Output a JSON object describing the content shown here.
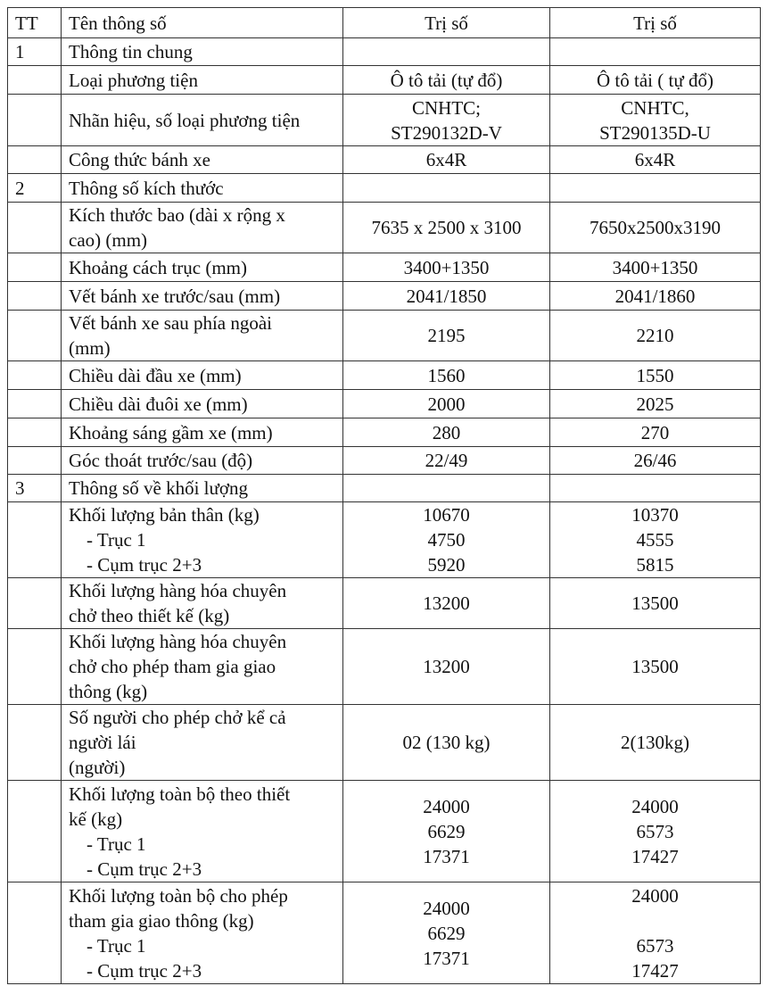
{
  "header": {
    "tt": "TT",
    "name": "Tên thông số",
    "value1": "Trị số",
    "value2": "Trị số"
  },
  "rows": [
    {
      "h": 31,
      "tt": "1",
      "name": [
        "Thông tin chung"
      ],
      "v1": [],
      "v2": []
    },
    {
      "h": 32,
      "tt": "",
      "name": [
        "Loại phương tiện"
      ],
      "v1": [
        "Ô tô tải (tự đổ)"
      ],
      "v2": [
        "Ô tô tải ( tự đổ)"
      ]
    },
    {
      "h": 58,
      "tt": "",
      "name": [
        "Nhãn hiệu, số loại phương tiện"
      ],
      "v1": [
        "CNHTC;",
        "ST290132D-V"
      ],
      "v2": [
        "CNHTC,",
        "ST290135D-U"
      ]
    },
    {
      "h": 31,
      "tt": "",
      "name": [
        "Công thức bánh xe"
      ],
      "v1": [
        "6x4R"
      ],
      "v2": [
        "6x4R"
      ]
    },
    {
      "h": 32,
      "tt": "2",
      "name": [
        "Thông số kích thước"
      ],
      "v1": [],
      "v2": []
    },
    {
      "h": 55,
      "tt": "",
      "name": [
        "Kích thước bao (dài x rộng x",
        "cao) (mm)"
      ],
      "v1": [
        "7635 x 2500 x 3100"
      ],
      "v2": [
        "7650x2500x3190"
      ]
    },
    {
      "h": 32,
      "tt": "",
      "name": [
        "Khoảng cách trục (mm)"
      ],
      "v1": [
        "3400+1350"
      ],
      "v2": [
        "3400+1350"
      ]
    },
    {
      "h": 32,
      "tt": "",
      "name": [
        "Vết bánh xe trước/sau (mm)"
      ],
      "v1": [
        "2041/1850"
      ],
      "v2": [
        "2041/1860"
      ]
    },
    {
      "h": 57,
      "tt": "",
      "name": [
        "Vết bánh xe sau phía ngoài",
        "(mm)"
      ],
      "v1": [
        "2195"
      ],
      "v2": [
        "2210"
      ]
    },
    {
      "h": 32,
      "tt": "",
      "name": [
        "Chiều dài đầu xe (mm)"
      ],
      "v1": [
        "1560"
      ],
      "v2": [
        "1550"
      ]
    },
    {
      "h": 32,
      "tt": "",
      "name": [
        "Chiều dài đuôi xe (mm)"
      ],
      "v1": [
        "2000"
      ],
      "v2": [
        "2025"
      ]
    },
    {
      "h": 32,
      "tt": "",
      "name": [
        "Khoảng sáng gầm xe (mm)"
      ],
      "v1": [
        "280"
      ],
      "v2": [
        "270"
      ]
    },
    {
      "h": 31,
      "tt": "",
      "name": [
        "Góc thoát trước/sau (độ)"
      ],
      "v1": [
        "22/49"
      ],
      "v2": [
        "26/46"
      ]
    },
    {
      "h": 31,
      "tt": "3",
      "name": [
        "Thông số về khối lượng"
      ],
      "v1": [],
      "v2": []
    },
    {
      "h": 83,
      "tt": "",
      "name": [
        "Khối lượng bản thân (kg)",
        "-  Trục 1",
        "-  Cụm trục 2+3"
      ],
      "v1": [
        "10670",
        "4750",
        "5920"
      ],
      "v2": [
        "10370",
        "4555",
        "5815"
      ]
    },
    {
      "h": 57,
      "tt": "",
      "name": [
        "Khối lượng hàng hóa chuyên",
        "chở theo thiết kế (kg)"
      ],
      "v1": [
        "13200"
      ],
      "v2": [
        "13500"
      ]
    },
    {
      "h": 84,
      "tt": "",
      "name": [
        "Khối lượng hàng hóa chuyên",
        "chở cho phép tham gia giao",
        "thông (kg)"
      ],
      "v1": [
        "13200"
      ],
      "v2": [
        "13500"
      ]
    },
    {
      "h": 84,
      "tt": "",
      "name": [
        "Số người cho phép chở kể cả",
        "người lái",
        "(người)"
      ],
      "v1": [
        "02 (130 kg)"
      ],
      "v2": [
        "2(130kg)"
      ]
    },
    {
      "h": 114,
      "tt": "",
      "name": [
        "Khối lượng toàn bộ theo thiết",
        "kế (kg)",
        "-  Trục 1",
        "-  Cụm trục 2+3"
      ],
      "v1": [
        "24000",
        "6629",
        "17371"
      ],
      "v2": [
        "24000",
        "6573",
        "17427"
      ]
    },
    {
      "h": 114,
      "tt": "",
      "name": [
        "Khối lượng toàn bộ cho phép",
        "tham gia giao thông (kg)",
        "-  Trục 1",
        "-  Cụm trục 2+3"
      ],
      "v1": [
        "24000",
        "6629",
        "17371"
      ],
      "v2": [
        "24000",
        "",
        "6573",
        "17427"
      ]
    }
  ]
}
